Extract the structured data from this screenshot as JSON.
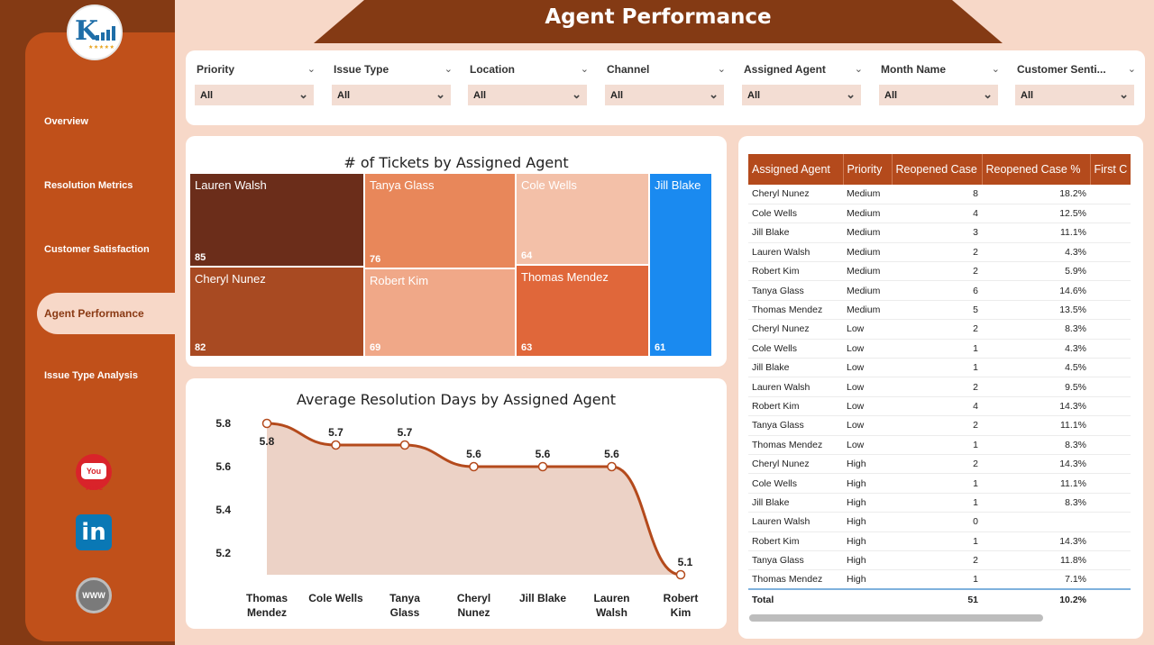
{
  "header": {
    "title": "Agent Performance"
  },
  "sidebar": {
    "items": [
      {
        "label": "Overview"
      },
      {
        "label": "Resolution Metrics"
      },
      {
        "label": "Customer Satisfaction"
      },
      {
        "label": "Agent Performance",
        "active": true
      },
      {
        "label": "Issue Type Analysis"
      }
    ],
    "social": {
      "youtube_label": "You Tube",
      "www_label": "WWW"
    }
  },
  "filters": [
    {
      "label": "Priority",
      "value": "All"
    },
    {
      "label": "Issue Type",
      "value": "All"
    },
    {
      "label": "Location",
      "value": "All"
    },
    {
      "label": "Channel",
      "value": "All"
    },
    {
      "label": "Assigned Agent",
      "value": "All"
    },
    {
      "label": "Month Name",
      "value": "All"
    },
    {
      "label": "Customer Senti...",
      "value": "All"
    }
  ],
  "chart_data": [
    {
      "type": "treemap",
      "title": "# of Tickets by Assigned Agent",
      "items": [
        {
          "name": "Lauren Walsh",
          "value": 85,
          "color": "#6b2d1a"
        },
        {
          "name": "Cheryl Nunez",
          "value": 82,
          "color": "#a84a22"
        },
        {
          "name": "Tanya Glass",
          "value": 76,
          "color": "#e8875a"
        },
        {
          "name": "Robert Kim",
          "value": 69,
          "color": "#f0a888"
        },
        {
          "name": "Cole Wells",
          "value": 64,
          "color": "#f3c0a8"
        },
        {
          "name": "Thomas Mendez",
          "value": 63,
          "color": "#e0673a"
        },
        {
          "name": "Jill Blake",
          "value": 61,
          "color": "#1a8af0"
        }
      ]
    },
    {
      "type": "area",
      "title": "Average Resolution Days by Assigned Agent",
      "categories": [
        "Thomas\nMendez",
        "Cole Wells",
        "Tanya\nGlass",
        "Cheryl\nNunez",
        "Jill Blake",
        "Lauren\nWalsh",
        "Robert\nKim"
      ],
      "values": [
        5.8,
        5.7,
        5.7,
        5.6,
        5.6,
        5.6,
        5.1
      ],
      "data_labels": [
        "5.8",
        "5.7",
        "5.7",
        "5.6",
        "5.6",
        "5.6",
        "5.1"
      ],
      "y_ticks": [
        "5.8",
        "5.6",
        "5.4",
        "5.2"
      ],
      "ylim": [
        5.1,
        5.8
      ],
      "line_color": "#b44a1c",
      "fill_color": "#ecd2c6"
    },
    {
      "type": "table",
      "columns": [
        "Assigned Agent",
        "Priority",
        "Reopened Case",
        "Reopened Case %",
        "First C"
      ],
      "rows": [
        [
          "Cheryl Nunez",
          "Medium",
          "8",
          "18.2%"
        ],
        [
          "Cole Wells",
          "Medium",
          "4",
          "12.5%"
        ],
        [
          "Jill Blake",
          "Medium",
          "3",
          "11.1%"
        ],
        [
          "Lauren Walsh",
          "Medium",
          "2",
          "4.3%"
        ],
        [
          "Robert Kim",
          "Medium",
          "2",
          "5.9%"
        ],
        [
          "Tanya Glass",
          "Medium",
          "6",
          "14.6%"
        ],
        [
          "Thomas Mendez",
          "Medium",
          "5",
          "13.5%"
        ],
        [
          "Cheryl Nunez",
          "Low",
          "2",
          "8.3%"
        ],
        [
          "Cole Wells",
          "Low",
          "1",
          "4.3%"
        ],
        [
          "Jill Blake",
          "Low",
          "1",
          "4.5%"
        ],
        [
          "Lauren Walsh",
          "Low",
          "2",
          "9.5%"
        ],
        [
          "Robert Kim",
          "Low",
          "4",
          "14.3%"
        ],
        [
          "Tanya Glass",
          "Low",
          "2",
          "11.1%"
        ],
        [
          "Thomas Mendez",
          "Low",
          "1",
          "8.3%"
        ],
        [
          "Cheryl Nunez",
          "High",
          "2",
          "14.3%"
        ],
        [
          "Cole Wells",
          "High",
          "1",
          "11.1%"
        ],
        [
          "Jill Blake",
          "High",
          "1",
          "8.3%"
        ],
        [
          "Lauren Walsh",
          "High",
          "0",
          ""
        ],
        [
          "Robert Kim",
          "High",
          "1",
          "14.3%"
        ],
        [
          "Tanya Glass",
          "High",
          "2",
          "11.8%"
        ],
        [
          "Thomas Mendez",
          "High",
          "1",
          "7.1%"
        ]
      ],
      "total": [
        "Total",
        "",
        "51",
        "10.2%"
      ]
    }
  ]
}
